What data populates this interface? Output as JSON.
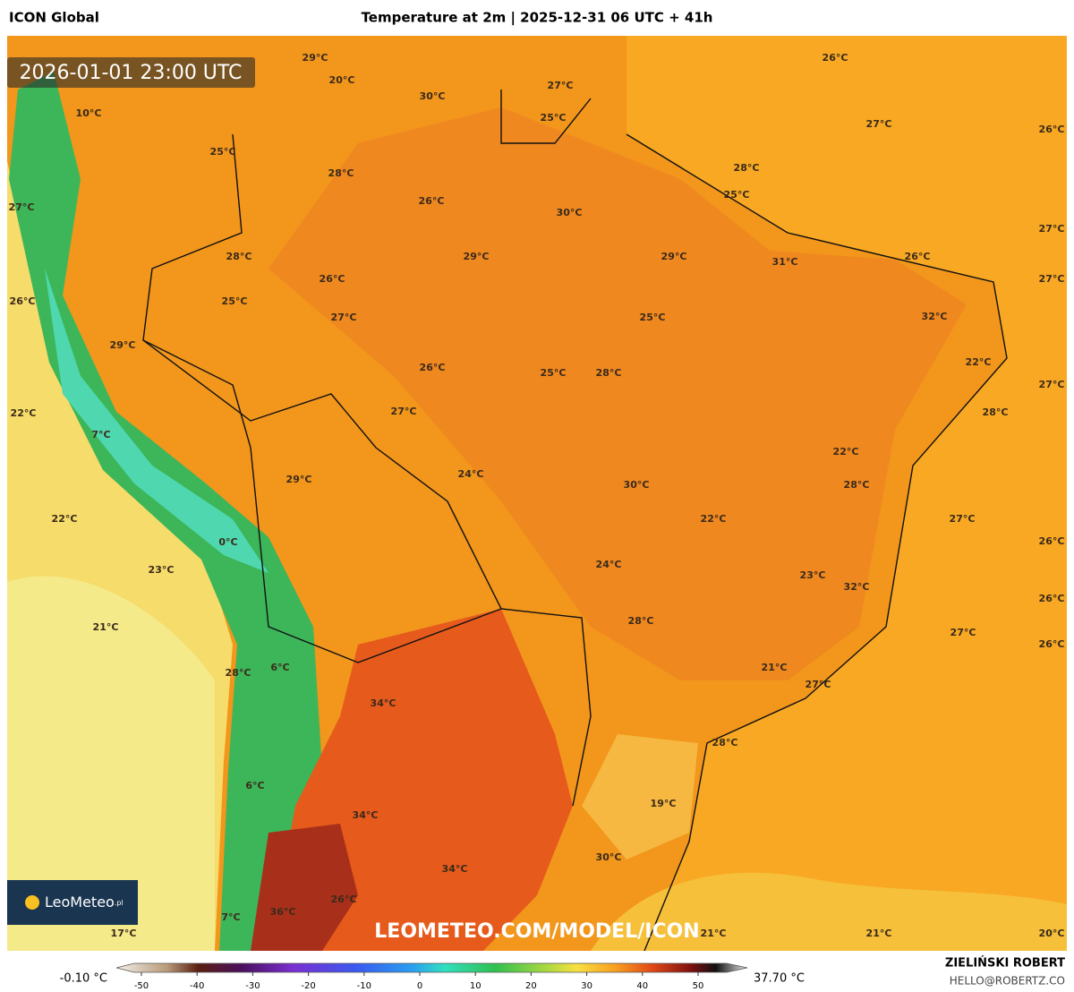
{
  "header": {
    "model": "ICON Global",
    "title": "Temperature at 2m | 2025-12-31 06 UTC + 41h"
  },
  "map": {
    "valid_time": "2026-01-01 23:00 UTC",
    "watermark": "LEOMETEO.COM/MODEL/ICON",
    "logo": {
      "name": "LeoMeteo",
      "suffix": ".pl"
    },
    "labels": [
      "26°C",
      "29°C",
      "20°C",
      "30°C",
      "27°C",
      "10°C",
      "25°C",
      "27°C",
      "26°C",
      "25°C",
      "28°C",
      "28°C",
      "25°C",
      "26°C",
      "27°C",
      "30°C",
      "27°C",
      "28°C",
      "29°C",
      "29°C",
      "31°C",
      "26°C",
      "26°C",
      "27°C",
      "25°C",
      "26°C",
      "32°C",
      "27°C",
      "25°C",
      "29°C",
      "22°C",
      "26°C",
      "25°C",
      "28°C",
      "27°C",
      "22°C",
      "27°C",
      "28°C",
      "7°C",
      "22°C",
      "24°C",
      "29°C",
      "30°C",
      "28°C",
      "22°C",
      "22°C",
      "27°C",
      "0°C",
      "26°C",
      "24°C",
      "23°C",
      "23°C",
      "32°C",
      "26°C",
      "21°C",
      "28°C",
      "27°C",
      "26°C",
      "28°C",
      "6°C",
      "21°C",
      "27°C",
      "34°C",
      "28°C",
      "6°C",
      "19°C",
      "34°C",
      "30°C",
      "34°C",
      "26°C",
      "36°C",
      "7°C",
      "17°C",
      "21°C",
      "21°C",
      "20°C"
    ]
  },
  "colorbar": {
    "min_label": "-0.10 °C",
    "max_label": "37.70 °C",
    "ticks": [
      -50,
      -40,
      -30,
      -20,
      -10,
      0,
      10,
      20,
      30,
      40,
      50
    ]
  },
  "footer": {
    "author": "ZIELIŃSKI ROBERT",
    "email": "HELLO@ROBERTZ.CO"
  }
}
